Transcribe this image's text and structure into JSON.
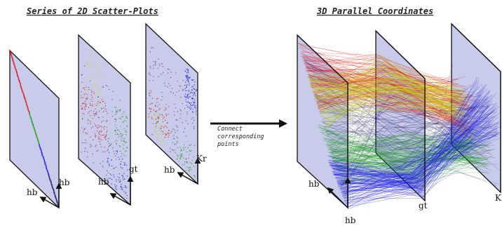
{
  "left_title": "Series of 2D Scatter-Plots",
  "right_title": "3D Parallel Coordinates",
  "arrow_text": [
    "Connect",
    "corresponding",
    "points"
  ],
  "scatter_plots": [
    {
      "axis_x": "hb",
      "axis_y": "hb"
    },
    {
      "axis_x": "hb",
      "axis_y": "gt"
    },
    {
      "axis_x": "hb",
      "axis_y": "Kr"
    }
  ],
  "parallel_axes": [
    "hb",
    "gt",
    "K"
  ],
  "colors": {
    "panel_fill": "#c9cbea",
    "red": "#e01010",
    "yellow": "#c8e000",
    "green": "#10a010",
    "blue": "#1818e0",
    "navy": "#101060"
  }
}
